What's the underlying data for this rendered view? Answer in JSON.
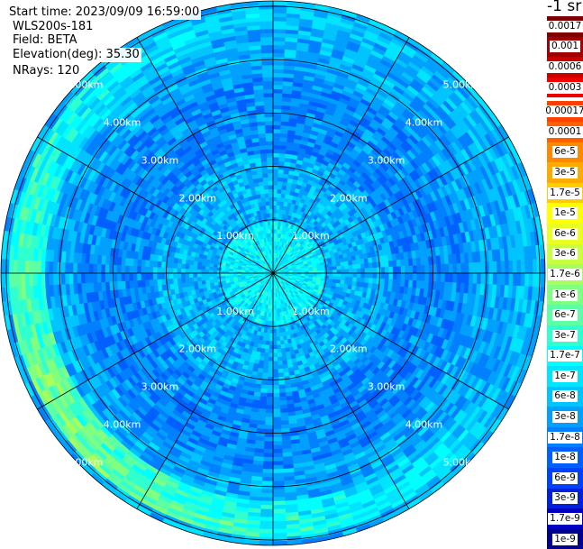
{
  "header": {
    "start_time": "Start time: 2023/09/09 16:59:00",
    "instrument": "WLS200s-181",
    "field": "Field: BETA",
    "elevation": "Elevation(deg): 35.30",
    "nrays": "NRays: 120"
  },
  "colorbar": {
    "unit": "-1 sr",
    "top_group": [
      {
        "label": "0.0017",
        "color": "#800000"
      },
      {
        "label": "0.001",
        "color": "#a00000"
      },
      {
        "label": "0.0006",
        "color": "#c80000"
      },
      {
        "label": "0.0003",
        "color": "#f00000"
      }
    ],
    "bottom_group": [
      {
        "label": "0.00017",
        "color": "#ff4000"
      },
      {
        "label": "0.0001",
        "color": "#ff6000"
      },
      {
        "label": "6e-5",
        "color": "#ff8800"
      },
      {
        "label": "3e-5",
        "color": "#ffaa00"
      },
      {
        "label": "1.7e-5",
        "color": "#ffcc00"
      },
      {
        "label": "1e-5",
        "color": "#ffff00"
      },
      {
        "label": "6e-6",
        "color": "#eaff20"
      },
      {
        "label": "3e-6",
        "color": "#c8ff40"
      },
      {
        "label": "1.7e-6",
        "color": "#a8ff5c"
      },
      {
        "label": "1e-6",
        "color": "#80ff80"
      },
      {
        "label": "6e-7",
        "color": "#5cffa4"
      },
      {
        "label": "3e-7",
        "color": "#30ffd0"
      },
      {
        "label": "1.7e-7",
        "color": "#00ffff"
      },
      {
        "label": "1e-7",
        "color": "#00e4ff"
      },
      {
        "label": "6e-8",
        "color": "#00c4ff"
      },
      {
        "label": "3e-8",
        "color": "#00a0ff"
      },
      {
        "label": "1.7e-8",
        "color": "#0080ff"
      },
      {
        "label": "1e-8",
        "color": "#0060ff"
      },
      {
        "label": "6e-9",
        "color": "#0040ff"
      },
      {
        "label": "3e-9",
        "color": "#0020e0"
      },
      {
        "label": "1.7e-9",
        "color": "#0000c0"
      },
      {
        "label": "1e-9",
        "color": "#000090"
      }
    ]
  },
  "chart_data": {
    "type": "heatmap",
    "projection": "polar (PPI)",
    "rays": 120,
    "rings": [
      {
        "value": 1,
        "label": "1.00km"
      },
      {
        "value": 2,
        "label": "2.00km"
      },
      {
        "value": 3,
        "label": "3.00km"
      },
      {
        "value": 4,
        "label": "4.00km"
      },
      {
        "value": 5,
        "label": "5.00km"
      }
    ],
    "radius_max_km": 5.1,
    "spoke_angles_deg": [
      0,
      30,
      60,
      90,
      120,
      150,
      180,
      210,
      240,
      270,
      300,
      330
    ],
    "dominant_range": [
      "1e-8",
      "1.7e-7"
    ],
    "enhanced_arc": {
      "range_km": [
        4.2,
        4.9
      ],
      "value": "3e-6"
    }
  }
}
